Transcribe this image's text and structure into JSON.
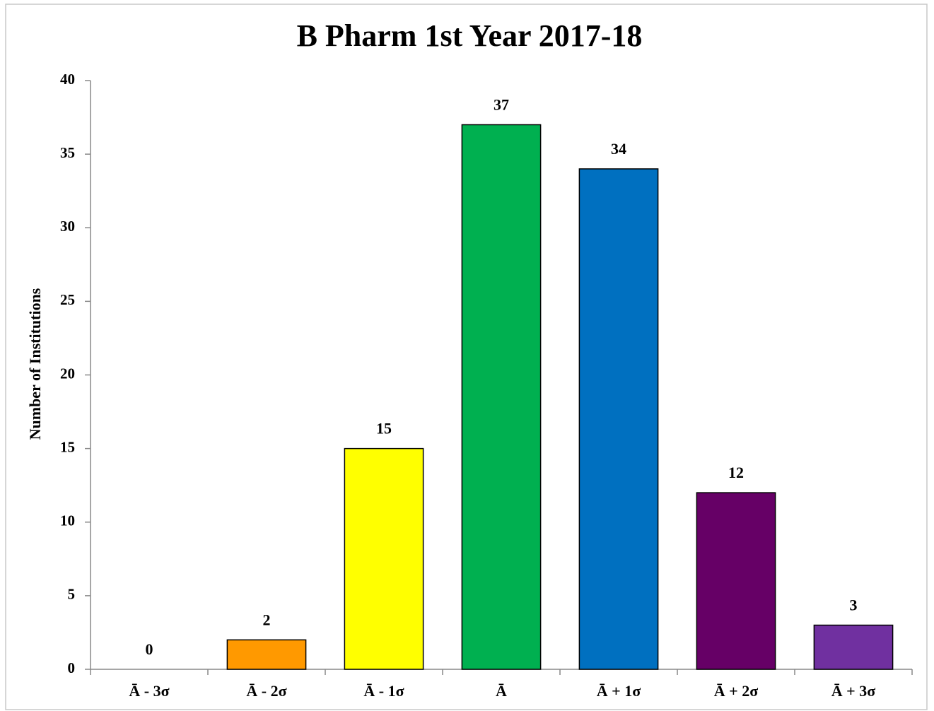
{
  "chart_data": {
    "type": "bar",
    "title": "B Pharm 1st Year 2017-18",
    "y_label": "Number of Institutions",
    "categories": [
      "Ā - 3σ",
      "Ā - 2σ",
      "Ā - 1σ",
      "Ā",
      "Ā + 1σ",
      "Ā + 2σ",
      "Ā + 3σ"
    ],
    "values": [
      0,
      2,
      15,
      37,
      34,
      12,
      3
    ],
    "colors": [
      null,
      "#ff9900",
      "#ffff00",
      "#00b050",
      "#0070c0",
      "#660066",
      "#7030a0"
    ],
    "ylim": [
      0,
      40
    ],
    "yticks": [
      0,
      5,
      10,
      15,
      20,
      25,
      30,
      35,
      40
    ],
    "grid": false
  }
}
